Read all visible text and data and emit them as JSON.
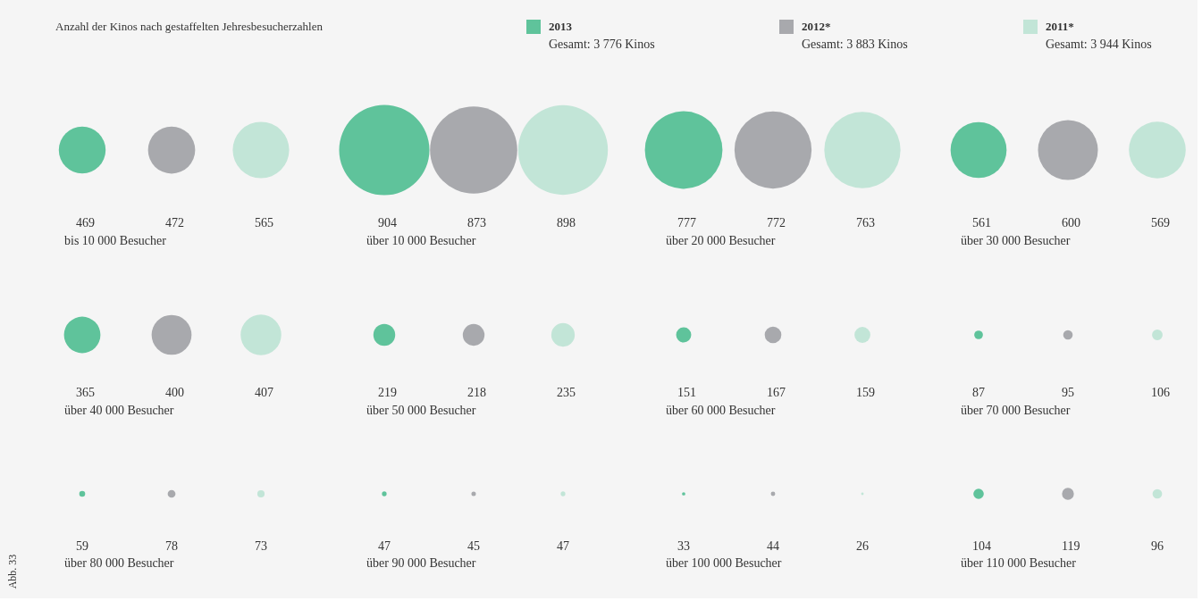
{
  "chart_data": {
    "type": "other",
    "title": "Anzahl der Kinos nach gestaffelten Jehresbesucherzahlen",
    "categories": [
      "bis 10 000 Besucher",
      "über 10 000 Besucher",
      "über 20 000 Besucher",
      "über 30 000 Besucher",
      "über 40 000 Besucher",
      "über 50 000 Besucher",
      "über 60 000 Besucher",
      "über 70 000 Besucher",
      "über 80 000 Besucher",
      "über 90 000 Besucher",
      "über 100 000 Besucher",
      "über 110 000 Besucher"
    ],
    "series": [
      {
        "name": "2013",
        "color": "#5fc39b",
        "values": [
          469,
          904,
          777,
          561,
          365,
          219,
          151,
          87,
          59,
          47,
          33,
          104
        ]
      },
      {
        "name": "2012*",
        "color": "#a8a9ad",
        "values": [
          472,
          873,
          772,
          600,
          400,
          218,
          167,
          95,
          78,
          45,
          44,
          119
        ]
      },
      {
        "name": "2011*",
        "color": "#c2e5d7",
        "values": [
          565,
          898,
          763,
          569,
          407,
          235,
          159,
          106,
          73,
          47,
          26,
          96
        ]
      }
    ],
    "data_labels": true,
    "legend": "top",
    "annotations": [
      "Gesamt: 3 776 Kinos",
      "Gesamt: 3 883 Kinos",
      "Gesamt: 3 944 Kinos",
      "Abb. 33"
    ]
  }
}
